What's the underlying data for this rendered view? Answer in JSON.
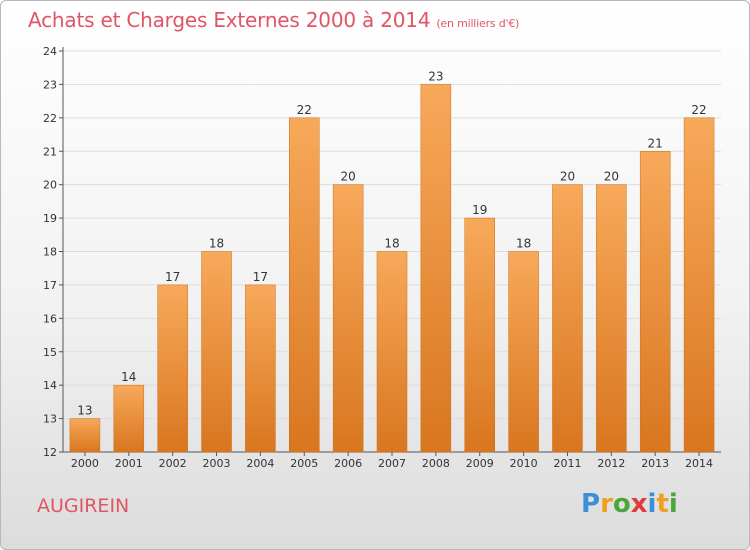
{
  "header": {
    "title": "Achats et Charges Externes 2000 à 2014",
    "subtitle": "(en milliers d'€)"
  },
  "commune": "AUGIREIN",
  "logo": {
    "text": "Proxiti",
    "letters": [
      {
        "ch": "P",
        "color": "#3a8fd6"
      },
      {
        "ch": "r",
        "color": "#f0a020"
      },
      {
        "ch": "o",
        "color": "#4aa83a"
      },
      {
        "ch": "x",
        "color": "#e03a3a"
      },
      {
        "ch": "i",
        "color": "#3a8fd6"
      },
      {
        "ch": "t",
        "color": "#f0a020"
      },
      {
        "ch": "i",
        "color": "#4aa83a"
      }
    ]
  },
  "colors": {
    "bar_top": "#f7a95a",
    "bar_bottom": "#d9761f",
    "title": "#e05565",
    "grid": "#dddddd"
  },
  "chart_data": {
    "type": "bar",
    "title": "Achats et Charges Externes 2000 à 2014",
    "categories": [
      "2000",
      "2001",
      "2002",
      "2003",
      "2004",
      "2005",
      "2006",
      "2007",
      "2008",
      "2009",
      "2010",
      "2011",
      "2012",
      "2013",
      "2014"
    ],
    "values": [
      13,
      14,
      17,
      18,
      17,
      22,
      20,
      18,
      23,
      19,
      18,
      20,
      20,
      21,
      22
    ],
    "ylim": [
      12,
      24
    ],
    "yticks": [
      12,
      13,
      14,
      15,
      16,
      17,
      18,
      19,
      20,
      21,
      22,
      23,
      24
    ],
    "grid": true,
    "xlabel": "",
    "ylabel": ""
  }
}
